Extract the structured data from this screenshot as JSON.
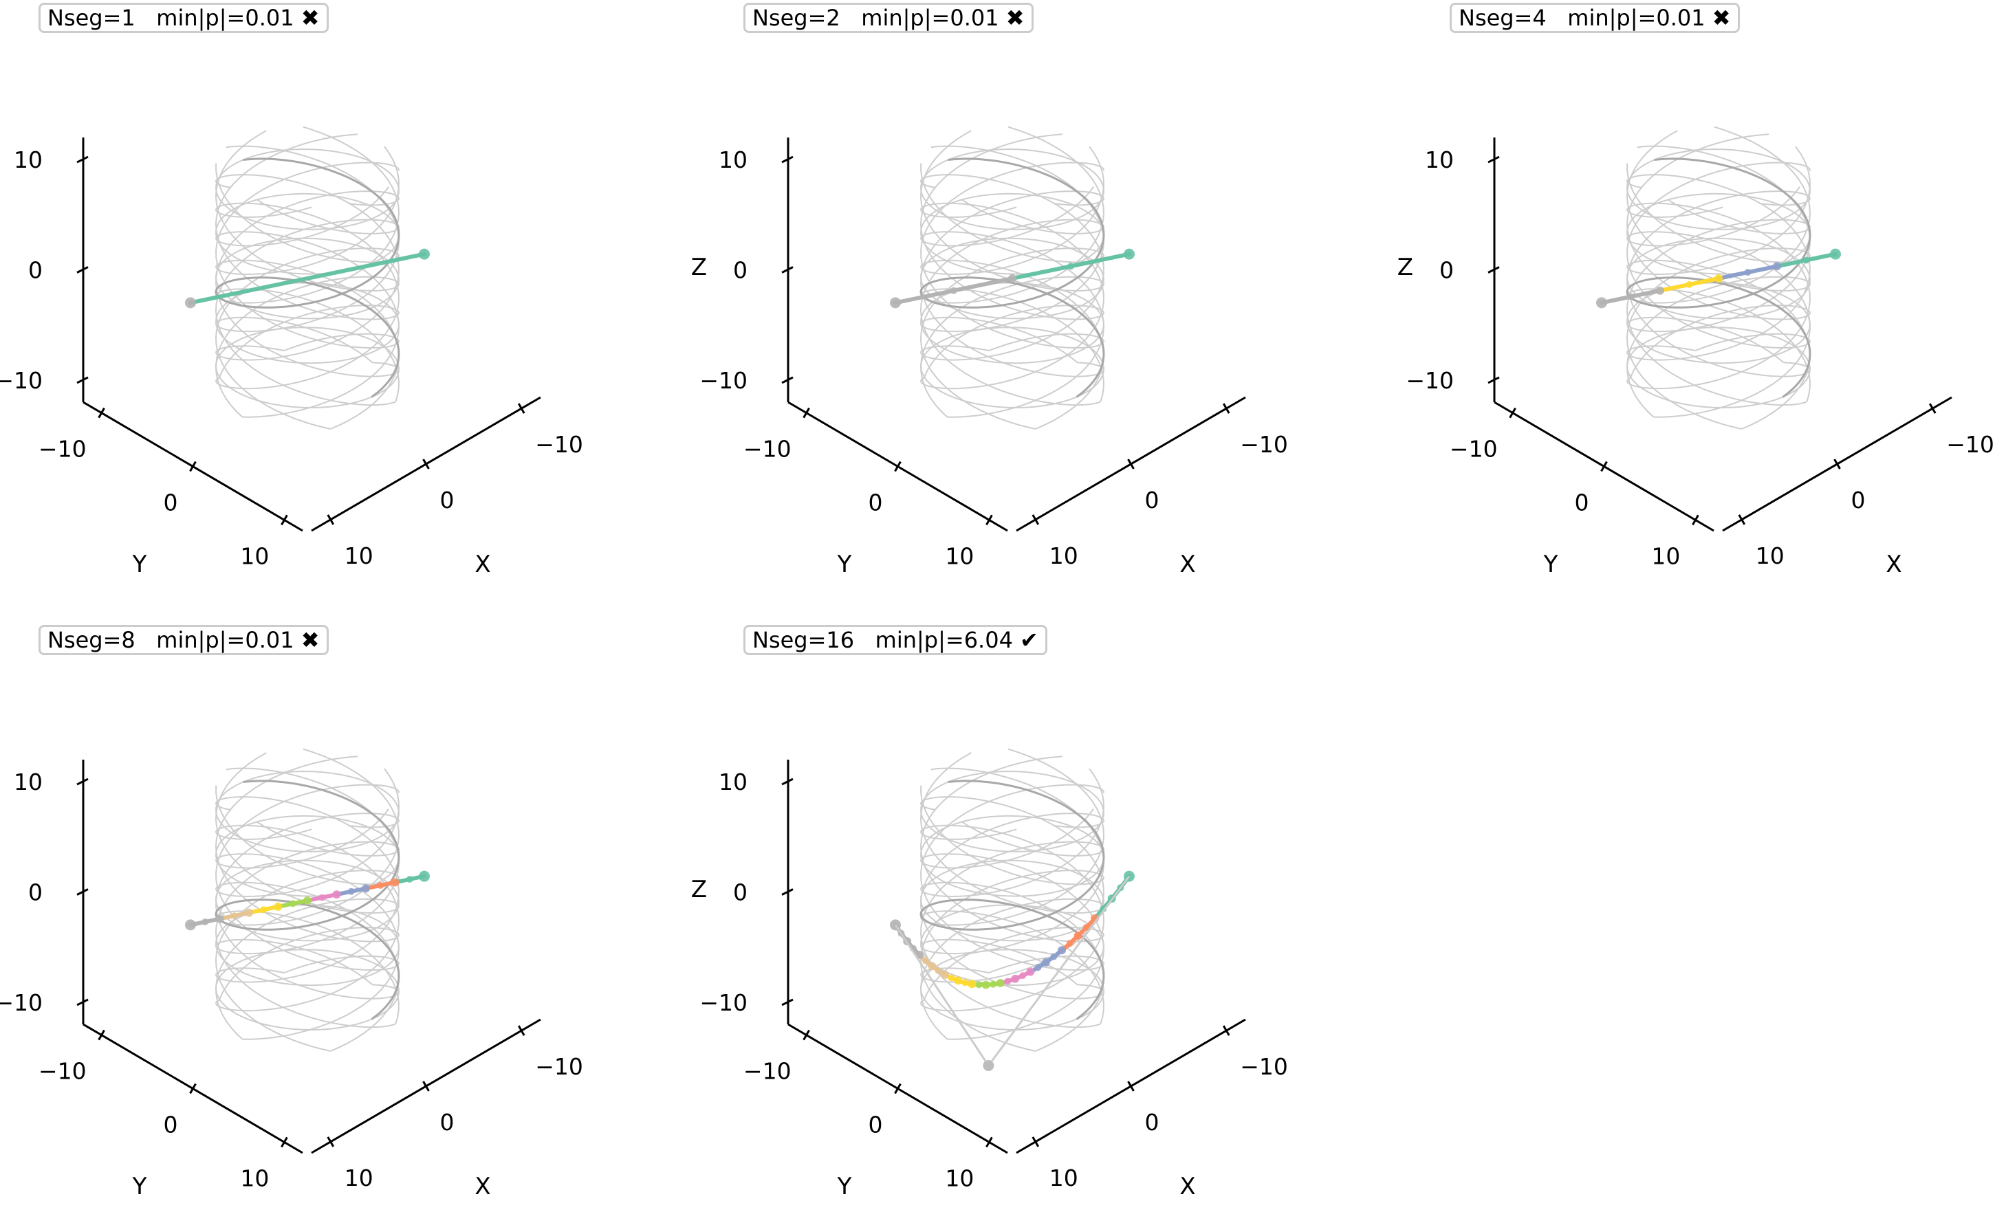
{
  "chart_data": [
    {
      "type": "line3d",
      "title": "Nseg=1   min|p|=0.01 ✖",
      "nseg": 1,
      "min_p": 0.01,
      "passed": false,
      "status_icon": "cross-mark-icon",
      "xlabel": "X",
      "ylabel": "Y",
      "zlabel": "",
      "xlim": [
        -12,
        12
      ],
      "ylim": [
        -12,
        12
      ],
      "zlim": [
        -12,
        12
      ],
      "x_ticks": [
        -10,
        0,
        10
      ],
      "y_ticks": [
        -10,
        0,
        10
      ],
      "z_ticks": [
        -10,
        0,
        10
      ],
      "start_point": [
        0,
        10,
        -7
      ],
      "end_point": [
        0,
        -10,
        7
      ],
      "path_shape": "straight",
      "segment_colors": [
        "#66c2a5"
      ],
      "grid": false
    },
    {
      "type": "line3d",
      "title": "Nseg=2   min|p|=0.01 ✖",
      "nseg": 2,
      "min_p": 0.01,
      "passed": false,
      "status_icon": "cross-mark-icon",
      "xlabel": "X",
      "ylabel": "Y",
      "zlabel": "Z",
      "xlim": [
        -12,
        12
      ],
      "ylim": [
        -12,
        12
      ],
      "zlim": [
        -12,
        12
      ],
      "x_ticks": [
        -10,
        0,
        10
      ],
      "y_ticks": [
        -10,
        0,
        10
      ],
      "z_ticks": [
        -10,
        0,
        10
      ],
      "start_point": [
        0,
        10,
        -7
      ],
      "end_point": [
        0,
        -10,
        7
      ],
      "path_shape": "straight",
      "segment_colors": [
        "#b3b3b3",
        "#66c2a5"
      ],
      "grid": false
    },
    {
      "type": "line3d",
      "title": "Nseg=4   min|p|=0.01 ✖",
      "nseg": 4,
      "min_p": 0.01,
      "passed": false,
      "status_icon": "cross-mark-icon",
      "xlabel": "X",
      "ylabel": "Y",
      "zlabel": "Z",
      "xlim": [
        -12,
        12
      ],
      "ylim": [
        -12,
        12
      ],
      "zlim": [
        -12,
        12
      ],
      "x_ticks": [
        -10,
        0,
        10
      ],
      "y_ticks": [
        -10,
        0,
        10
      ],
      "z_ticks": [
        -10,
        0,
        10
      ],
      "start_point": [
        0,
        10,
        -7
      ],
      "end_point": [
        0,
        -10,
        7
      ],
      "path_shape": "straight",
      "segment_colors": [
        "#b3b3b3",
        "#ffd92f",
        "#8da0cb",
        "#66c2a5"
      ],
      "grid": false
    },
    {
      "type": "line3d",
      "title": "Nseg=8   min|p|=0.01 ✖",
      "nseg": 8,
      "min_p": 0.01,
      "passed": false,
      "status_icon": "cross-mark-icon",
      "xlabel": "X",
      "ylabel": "Y",
      "zlabel": "",
      "xlim": [
        -12,
        12
      ],
      "ylim": [
        -12,
        12
      ],
      "zlim": [
        -12,
        12
      ],
      "x_ticks": [
        -10,
        0,
        10
      ],
      "y_ticks": [
        -10,
        0,
        10
      ],
      "z_ticks": [
        -10,
        0,
        10
      ],
      "start_point": [
        0,
        10,
        -7
      ],
      "end_point": [
        0,
        -10,
        7
      ],
      "path_shape": "straight",
      "segment_colors": [
        "#b3b3b3",
        "#e5c494",
        "#ffd92f",
        "#a6d854",
        "#e78ac3",
        "#8da0cb",
        "#fc8d62",
        "#66c2a5"
      ],
      "grid": false
    },
    {
      "type": "line3d",
      "title": "Nseg=16   min|p|=6.04 ✔",
      "nseg": 16,
      "min_p": 6.04,
      "passed": true,
      "status_icon": "check-mark-icon",
      "xlabel": "X",
      "ylabel": "Y",
      "zlabel": "Z",
      "xlim": [
        -12,
        12
      ],
      "ylim": [
        -12,
        12
      ],
      "zlim": [
        -12,
        12
      ],
      "x_ticks": [
        -10,
        0,
        10
      ],
      "y_ticks": [
        -10,
        0,
        10
      ],
      "z_ticks": [
        -10,
        0,
        10
      ],
      "start_point": [
        0,
        10,
        -7
      ],
      "end_point": [
        0,
        -10,
        7
      ],
      "control_point": [
        -3,
        -1,
        -13
      ],
      "path_shape": "curved",
      "segment_colors": [
        "#b3b3b3",
        "#b3b3b3",
        "#e5c494",
        "#e5c494",
        "#ffd92f",
        "#ffd92f",
        "#a6d854",
        "#a6d854",
        "#e78ac3",
        "#e78ac3",
        "#8da0cb",
        "#8da0cb",
        "#fc8d62",
        "#fc8d62",
        "#66c2a5",
        "#66c2a5"
      ],
      "grid": false
    }
  ]
}
